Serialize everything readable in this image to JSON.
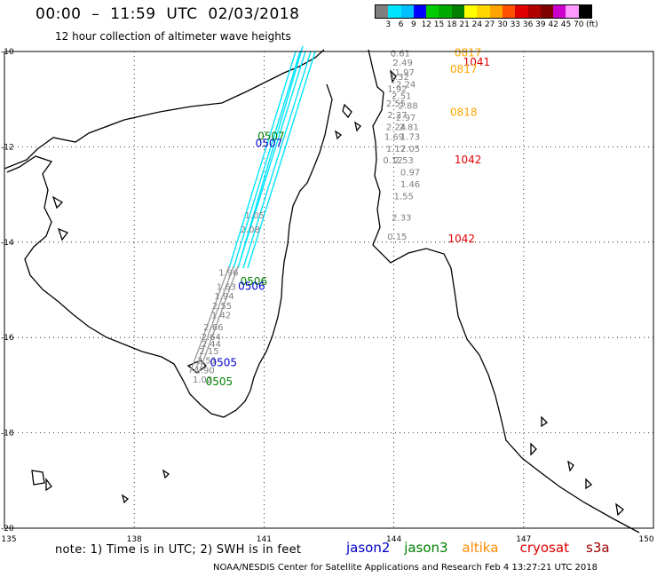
{
  "header": {
    "title": "00:00  –  11:59  UTC  02/03/2018",
    "subtitle": "12 hour collection of altimeter wave heights"
  },
  "colorbar": {
    "unit": "(ft)",
    "ticks": [
      "3",
      "6",
      "9",
      "12",
      "15",
      "18",
      "21",
      "24",
      "27",
      "30",
      "33",
      "36",
      "39",
      "42",
      "45",
      "70"
    ],
    "colors": [
      "#7f7f7f",
      "#00e5ff",
      "#00bfff",
      "#0000ff",
      "#00cc00",
      "#00aa00",
      "#007f00",
      "#ffff00",
      "#ffd700",
      "#ffa500",
      "#ff5000",
      "#e00000",
      "#b00000",
      "#7f0000",
      "#cc00cc",
      "#ff99ff",
      "#000000"
    ]
  },
  "axes": {
    "lat_labels": [
      "-10",
      "-12",
      "-14",
      "-16",
      "-18",
      "-20"
    ],
    "lon_labels": [
      "135",
      "138",
      "141",
      "144",
      "147",
      "150"
    ]
  },
  "passes": [
    {
      "label": "0817",
      "color": "#ffa500",
      "lon": 145.4,
      "lat": -10.1
    },
    {
      "label": "1041",
      "color": "#e00000",
      "lon": 145.6,
      "lat": -10.3
    },
    {
      "label": "0817",
      "color": "#ffa500",
      "lon": 145.3,
      "lat": -10.45
    },
    {
      "label": "0818",
      "color": "#ffa500",
      "lon": 145.3,
      "lat": -11.35
    },
    {
      "label": "1042",
      "color": "#e00000",
      "lon": 145.4,
      "lat": -12.35
    },
    {
      "label": "1042",
      "color": "#e00000",
      "lon": 145.25,
      "lat": -14.0
    },
    {
      "label": "0507",
      "color": "#008000",
      "lon": 140.85,
      "lat": -11.85
    },
    {
      "label": "0507",
      "color": "#0000cc",
      "lon": 140.8,
      "lat": -12.0
    },
    {
      "label": "0506",
      "color": "#008000",
      "lon": 140.45,
      "lat": -14.9
    },
    {
      "label": "0506",
      "color": "#0000cc",
      "lon": 140.4,
      "lat": -15.0
    },
    {
      "label": "0505",
      "color": "#0000cc",
      "lon": 139.75,
      "lat": -16.6
    },
    {
      "label": "0505",
      "color": "#008000",
      "lon": 139.65,
      "lat": -17.0
    }
  ],
  "observations": [
    {
      "v": "0.61",
      "lon": 143.92,
      "lat": -10.1
    },
    {
      "v": "2.49",
      "lon": 143.98,
      "lat": -10.3
    },
    {
      "v": "1.97",
      "lon": 144.02,
      "lat": -10.5
    },
    {
      "v": "1.32",
      "lon": 143.9,
      "lat": -10.6
    },
    {
      "v": "2.24",
      "lon": 144.05,
      "lat": -10.75
    },
    {
      "v": "1.92",
      "lon": 143.85,
      "lat": -10.85
    },
    {
      "v": "2.51",
      "lon": 143.95,
      "lat": -11.0
    },
    {
      "v": "2.88",
      "lon": 144.1,
      "lat": -11.2
    },
    {
      "v": "2.55",
      "lon": 143.82,
      "lat": -11.15
    },
    {
      "v": "2.27",
      "lon": 143.85,
      "lat": -11.4
    },
    {
      "v": "2.97",
      "lon": 144.05,
      "lat": -11.45
    },
    {
      "v": "2.81",
      "lon": 144.12,
      "lat": -11.65
    },
    {
      "v": "2.24",
      "lon": 143.82,
      "lat": -11.65
    },
    {
      "v": "1.73",
      "lon": 144.15,
      "lat": -11.85
    },
    {
      "v": "1.69",
      "lon": 143.78,
      "lat": -11.85
    },
    {
      "v": "1.17",
      "lon": 143.82,
      "lat": -12.1
    },
    {
      "v": "2.05",
      "lon": 144.15,
      "lat": -12.1
    },
    {
      "v": "0.12",
      "lon": 143.75,
      "lat": -12.35
    },
    {
      "v": "2.53",
      "lon": 144.0,
      "lat": -12.35
    },
    {
      "v": "0.97",
      "lon": 144.15,
      "lat": -12.6
    },
    {
      "v": "1.46",
      "lon": 144.15,
      "lat": -12.85
    },
    {
      "v": "1.55",
      "lon": 144.0,
      "lat": -13.1
    },
    {
      "v": "2.33",
      "lon": 143.95,
      "lat": -13.55
    },
    {
      "v": "0.15",
      "lon": 143.85,
      "lat": -13.95
    },
    {
      "v": "1.05",
      "lon": 140.55,
      "lat": -13.5
    },
    {
      "v": "2.08",
      "lon": 140.45,
      "lat": -13.8
    },
    {
      "v": "1.96",
      "lon": 139.95,
      "lat": -14.7
    },
    {
      "v": "1.63",
      "lon": 139.9,
      "lat": -15.0
    },
    {
      "v": "1.94",
      "lon": 139.85,
      "lat": -15.2
    },
    {
      "v": "2.55",
      "lon": 139.8,
      "lat": -15.4
    },
    {
      "v": "1.42",
      "lon": 139.78,
      "lat": -15.6
    },
    {
      "v": "2.66",
      "lon": 139.6,
      "lat": -15.85
    },
    {
      "v": "2.64",
      "lon": 139.55,
      "lat": -16.05
    },
    {
      "v": "2.44",
      "lon": 139.55,
      "lat": -16.2
    },
    {
      "v": "2.15",
      "lon": 139.5,
      "lat": -16.35
    },
    {
      "v": "2.51",
      "lon": 139.45,
      "lat": -16.55
    },
    {
      "v": "1.90",
      "lon": 139.4,
      "lat": -16.75
    },
    {
      "v": "1.02",
      "lon": 139.35,
      "lat": -16.95
    }
  ],
  "footnote": "note:  1) Time is in UTC;  2) SWH is in feet",
  "legend": [
    {
      "name": "jason2",
      "color": "#0000cc"
    },
    {
      "name": "jason3",
      "color": "#008000"
    },
    {
      "name": "altika",
      "color": "#ff8c00"
    },
    {
      "name": "cryosat",
      "color": "#e00000"
    },
    {
      "name": "s3a",
      "color": "#a00000"
    }
  ],
  "credit": "NOAA/NESDIS Center for Satellite Applications and Research    Feb  4 13:27:21 UTC 2018"
}
